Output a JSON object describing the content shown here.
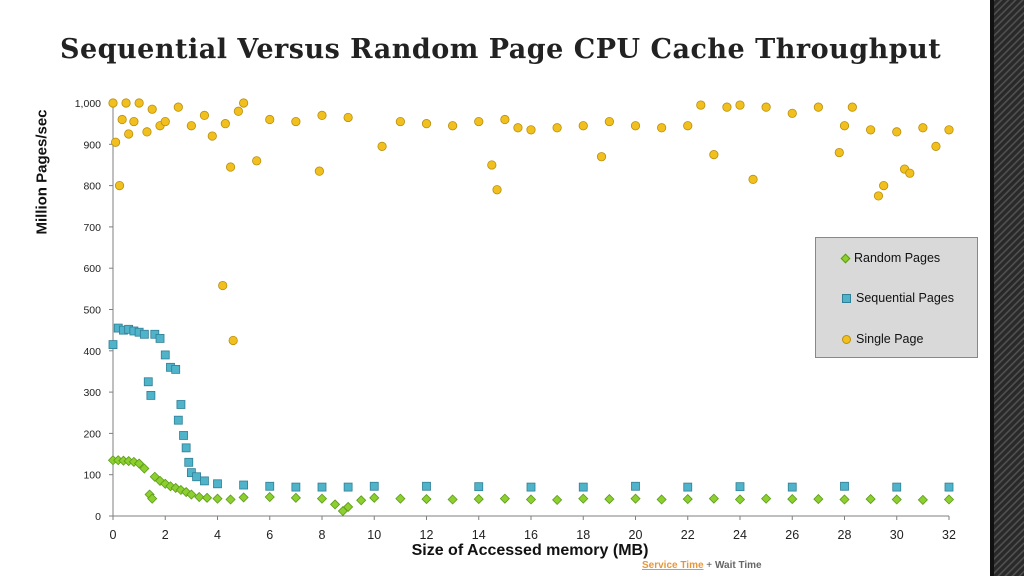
{
  "slide": {
    "title": "Sequential Versus Random Page CPU Cache Throughput",
    "footer_service": "Service Time",
    "footer_plus": " + ",
    "footer_wait": "Wait Time"
  },
  "colors": {
    "random": "#8ccf2e",
    "sequential": "#4fb3c9",
    "single": "#f2c01e"
  },
  "chart_data": {
    "type": "scatter",
    "title": "Sequential Versus Random Page CPU Cache Throughput",
    "xlabel": "Size of Accessed memory (MB)",
    "ylabel": "Million Pages/sec",
    "xlim": [
      0,
      32
    ],
    "ylim": [
      0,
      1000
    ],
    "x_ticks": [
      "0",
      "2",
      "4",
      "6",
      "8",
      "10",
      "12",
      "14",
      "16",
      "18",
      "20",
      "22",
      "24",
      "26",
      "28",
      "30",
      "32"
    ],
    "y_ticks": [
      "0",
      "100",
      "200",
      "300",
      "400",
      "500",
      "600",
      "700",
      "800",
      "900",
      "1,000"
    ],
    "grid": false,
    "legend_position": "right",
    "series": [
      {
        "name": "Random Pages",
        "marker": "diamond",
        "x": [
          0.0,
          0.2,
          0.4,
          0.6,
          0.8,
          1.0,
          1.2,
          1.4,
          1.5,
          1.6,
          1.8,
          2.0,
          2.2,
          2.4,
          2.6,
          2.8,
          3.0,
          3.3,
          3.6,
          4.0,
          4.5,
          5.0,
          6.0,
          7.0,
          8.0,
          8.5,
          8.8,
          9.0,
          9.5,
          10.0,
          11.0,
          12.0,
          13.0,
          14.0,
          15.0,
          16.0,
          17.0,
          18.0,
          19.0,
          20.0,
          21.0,
          22.0,
          23.0,
          24.0,
          25.0,
          26.0,
          27.0,
          28.0,
          29.0,
          30.0,
          31.0,
          32.0
        ],
        "y": [
          135,
          135,
          134,
          133,
          131,
          127,
          115,
          52,
          42,
          95,
          85,
          78,
          72,
          68,
          63,
          58,
          52,
          46,
          44,
          42,
          40,
          45,
          46,
          44,
          42,
          28,
          12,
          22,
          38,
          44,
          42,
          41,
          40,
          41,
          42,
          40,
          39,
          42,
          41,
          42,
          40,
          41,
          42,
          40,
          42,
          41,
          41,
          40,
          41,
          40,
          39,
          40
        ]
      },
      {
        "name": "Sequential Pages",
        "marker": "square",
        "x": [
          0.0,
          0.2,
          0.4,
          0.6,
          0.8,
          1.0,
          1.2,
          1.35,
          1.45,
          1.6,
          1.8,
          2.0,
          2.2,
          2.4,
          2.5,
          2.6,
          2.7,
          2.8,
          2.9,
          3.0,
          3.2,
          3.5,
          4.0,
          5.0,
          6.0,
          7.0,
          8.0,
          9.0,
          10.0,
          12.0,
          14.0,
          16.0,
          18.0,
          20.0,
          22.0,
          24.0,
          26.0,
          28.0,
          30.0,
          32.0
        ],
        "y": [
          415,
          455,
          450,
          452,
          448,
          445,
          440,
          325,
          292,
          440,
          430,
          390,
          360,
          355,
          232,
          270,
          195,
          165,
          130,
          105,
          95,
          85,
          78,
          75,
          72,
          70,
          70,
          70,
          72,
          72,
          71,
          70,
          70,
          72,
          70,
          71,
          70,
          72,
          70,
          70
        ]
      },
      {
        "name": "Single Page",
        "marker": "circle",
        "x": [
          0.0,
          0.1,
          0.25,
          0.35,
          0.5,
          0.6,
          0.8,
          1.0,
          1.3,
          1.5,
          1.8,
          2.0,
          2.5,
          3.0,
          3.5,
          3.8,
          4.2,
          4.3,
          4.5,
          4.6,
          4.8,
          5.0,
          5.5,
          6.0,
          7.0,
          7.9,
          8.0,
          9.0,
          10.3,
          11.0,
          12.0,
          13.0,
          14.0,
          14.5,
          14.7,
          15.0,
          15.5,
          16.0,
          17.0,
          18.0,
          18.7,
          19.0,
          20.0,
          21.0,
          22.0,
          22.5,
          23.0,
          23.5,
          24.0,
          24.5,
          25.0,
          26.0,
          27.0,
          27.8,
          28.0,
          28.3,
          29.0,
          29.3,
          29.5,
          30.0,
          30.3,
          30.5,
          31.0,
          31.5,
          32.0
        ],
        "y": [
          1000,
          905,
          800,
          960,
          1000,
          925,
          955,
          1000,
          930,
          985,
          945,
          955,
          990,
          945,
          970,
          920,
          558,
          950,
          845,
          425,
          980,
          1000,
          860,
          960,
          955,
          835,
          970,
          965,
          895,
          955,
          950,
          945,
          955,
          850,
          790,
          960,
          940,
          935,
          940,
          945,
          870,
          955,
          945,
          940,
          945,
          995,
          875,
          990,
          995,
          815,
          990,
          975,
          990,
          880,
          945,
          990,
          935,
          775,
          800,
          930,
          840,
          830,
          940,
          895,
          935
        ]
      }
    ]
  }
}
